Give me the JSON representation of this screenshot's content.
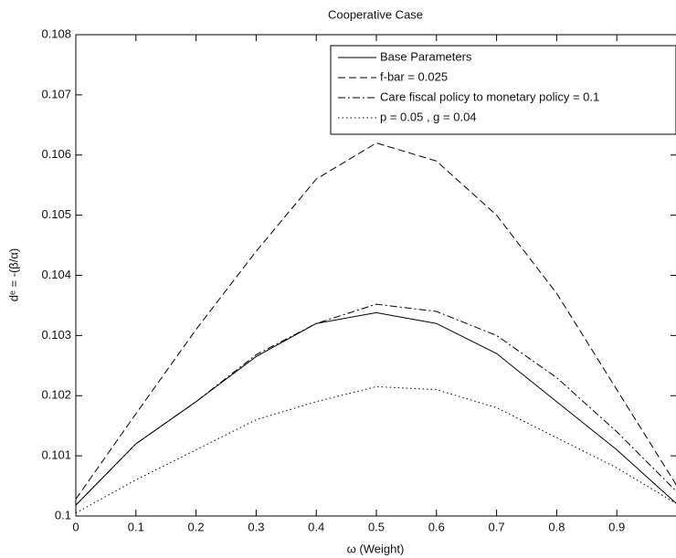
{
  "chart_data": {
    "type": "line",
    "title": "Cooperative Case",
    "xlabel": "ω (Weight)",
    "ylabel": "dᵉ = -(β/α)",
    "x": [
      0,
      0.1,
      0.2,
      0.3,
      0.4,
      0.5,
      0.6,
      0.7,
      0.8,
      0.9,
      1
    ],
    "series": [
      {
        "name": "Base Parameters",
        "color": "#000000",
        "style": "solid",
        "values": [
          0.10018,
          0.1012,
          0.1019,
          0.10265,
          0.1032,
          0.10338,
          0.1032,
          0.1027,
          0.1019,
          0.1011,
          0.1002
        ]
      },
      {
        "name": "f-bar = 0.025",
        "color": "#000000",
        "style": "dashed",
        "values": [
          0.10028,
          0.1017,
          0.1031,
          0.1044,
          0.1056,
          0.1062,
          0.1059,
          0.105,
          0.1037,
          0.1021,
          0.1005
        ]
      },
      {
        "name": "Care fiscal policy to monetary policy = 0.1",
        "color": "#000000",
        "style": "dashdot",
        "values": [
          0.10018,
          0.1012,
          0.1019,
          0.10268,
          0.1032,
          0.10352,
          0.1034,
          0.103,
          0.1023,
          0.1014,
          0.1004
        ]
      },
      {
        "name": "p = 0.05 , g = 0.04",
        "color": "#000000",
        "style": "dotted",
        "values": [
          0.10005,
          0.1006,
          0.1011,
          0.1016,
          0.1019,
          0.10215,
          0.1021,
          0.1018,
          0.1013,
          0.1008,
          0.1002
        ]
      }
    ],
    "xlim": [
      0,
      1
    ],
    "xticks": [
      0,
      0.1,
      0.2,
      0.3,
      0.4,
      0.5,
      0.6,
      0.7,
      0.8,
      0.9
    ],
    "ylim": [
      0.1,
      0.108
    ],
    "yticks": [
      0.1,
      0.101,
      0.102,
      0.103,
      0.104,
      0.105,
      0.106,
      0.107,
      0.108
    ],
    "grid": false,
    "legend": "upper right"
  }
}
